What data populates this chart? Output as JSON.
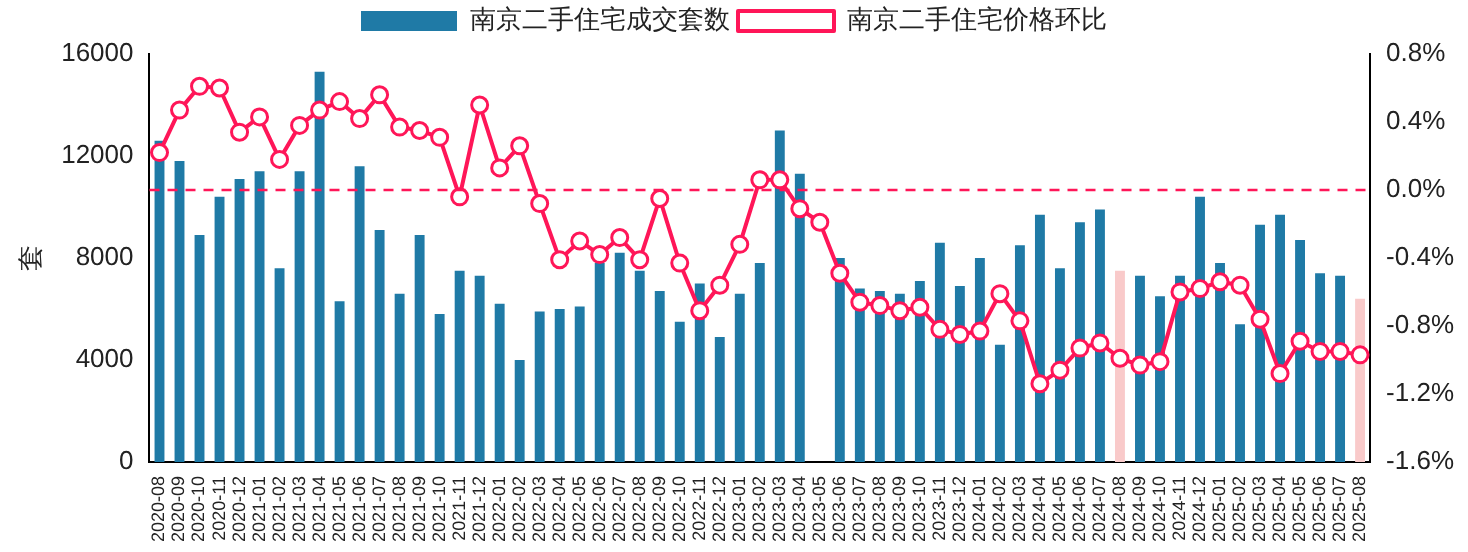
{
  "chart_data": {
    "type": "bar",
    "ylabel": "套",
    "categories": [
      "2020-08",
      "2020-09",
      "2020-10",
      "2020-11",
      "2020-12",
      "2021-01",
      "2021-02",
      "2021-03",
      "2021-04",
      "2021-05",
      "2021-06",
      "2021-07",
      "2021-08",
      "2021-09",
      "2021-10",
      "2021-11",
      "2021-12",
      "2022-01",
      "2022-02",
      "2022-03",
      "2022-04",
      "2022-05",
      "2022-06",
      "2022-07",
      "2022-08",
      "2022-09",
      "2022-10",
      "2022-11",
      "2022-12",
      "2023-01",
      "2023-02",
      "2023-03",
      "2023-04",
      "2023-05",
      "2023-06",
      "2023-07",
      "2023-08",
      "2023-09",
      "2023-10",
      "2023-11",
      "2023-12",
      "2024-01",
      "2024-02",
      "2024-03",
      "2024-04",
      "2024-05",
      "2024-06",
      "2024-07",
      "2024-08",
      "2024-09",
      "2024-10",
      "2024-11",
      "2024-12",
      "2025-01",
      "2025-02",
      "2025-03",
      "2025-04",
      "2025-05",
      "2025-06",
      "2025-07",
      "2025-08"
    ],
    "series": [
      {
        "name": "南京二手住宅成交套数",
        "colors": [
          "#1f7aa6",
          "#1f7aa6",
          "#1f7aa6",
          "#1f7aa6",
          "#1f7aa6",
          "#1f7aa6",
          "#1f7aa6",
          "#1f7aa6",
          "#1f7aa6",
          "#1f7aa6",
          "#1f7aa6",
          "#1f7aa6",
          "#1f7aa6",
          "#1f7aa6",
          "#1f7aa6",
          "#1f7aa6",
          "#1f7aa6",
          "#1f7aa6",
          "#1f7aa6",
          "#1f7aa6",
          "#1f7aa6",
          "#1f7aa6",
          "#1f7aa6",
          "#1f7aa6",
          "#1f7aa6",
          "#1f7aa6",
          "#1f7aa6",
          "#1f7aa6",
          "#1f7aa6",
          "#1f7aa6",
          "#1f7aa6",
          "#1f7aa6",
          "#1f7aa6",
          "#1f7aa6",
          "#1f7aa6",
          "#1f7aa6",
          "#1f7aa6",
          "#1f7aa6",
          "#1f7aa6",
          "#1f7aa6",
          "#1f7aa6",
          "#1f7aa6",
          "#1f7aa6",
          "#1f7aa6",
          "#1f7aa6",
          "#1f7aa6",
          "#1f7aa6",
          "#1f7aa6",
          "#f9caca",
          "#1f7aa6",
          "#1f7aa6",
          "#1f7aa6",
          "#1f7aa6",
          "#1f7aa6",
          "#1f7aa6",
          "#1f7aa6",
          "#1f7aa6",
          "#1f7aa6",
          "#1f7aa6",
          "#1f7aa6",
          "#f9caca"
        ],
        "values": [
          12600,
          11800,
          8900,
          10400,
          11100,
          11400,
          7600,
          11400,
          15300,
          6300,
          11600,
          9100,
          6600,
          8900,
          5800,
          7500,
          7300,
          6200,
          4000,
          5900,
          6000,
          6100,
          7800,
          8200,
          7500,
          6700,
          5500,
          7000,
          4900,
          6600,
          7800,
          13000,
          11300,
          null,
          8000,
          6800,
          6700,
          6600,
          7100,
          8600,
          6900,
          8000,
          4600,
          8500,
          9700,
          7600,
          9400,
          9900,
          7500,
          7300,
          6500,
          7300,
          10400,
          7800,
          5400,
          9300,
          9700,
          8700,
          7400,
          7300,
          6400
        ]
      },
      {
        "name": "南京二手住宅价格环比",
        "type": "line",
        "axis": "y2",
        "color": "#ff1658",
        "marker": "circle",
        "values": [
          0.22,
          0.47,
          0.61,
          0.6,
          0.34,
          0.43,
          0.18,
          0.38,
          0.47,
          0.52,
          0.42,
          0.56,
          0.37,
          0.35,
          0.31,
          -0.04,
          0.5,
          0.13,
          0.26,
          -0.08,
          -0.41,
          -0.3,
          -0.38,
          -0.28,
          -0.41,
          -0.05,
          -0.43,
          -0.71,
          -0.56,
          -0.32,
          0.06,
          0.06,
          -0.11,
          -0.19,
          -0.49,
          -0.66,
          -0.68,
          -0.71,
          -0.69,
          -0.82,
          -0.85,
          -0.83,
          -0.61,
          -0.77,
          -1.14,
          -1.06,
          -0.93,
          -0.9,
          -0.99,
          -1.03,
          -1.01,
          -0.6,
          -0.58,
          -0.54,
          -0.56,
          -0.76,
          -1.08,
          -0.89,
          -0.95,
          -0.95,
          -0.97
        ]
      }
    ],
    "ylim": [
      0,
      16000
    ],
    "yticks": [
      0,
      4000,
      8000,
      12000,
      16000
    ],
    "y2lim": [
      -1.6,
      0.8
    ],
    "y2ticks": [
      {
        "value": -1.6,
        "label": "-1.6%"
      },
      {
        "value": -1.2,
        "label": "-1.2%"
      },
      {
        "value": -0.8,
        "label": "-0.8%"
      },
      {
        "value": -0.4,
        "label": "-0.4%"
      },
      {
        "value": 0,
        "label": "0.0%"
      },
      {
        "value": 0.4,
        "label": "0.4%"
      },
      {
        "value": 0.8,
        "label": "0.8%"
      }
    ],
    "ref_lines": [
      {
        "axis": "y2",
        "value": 0,
        "color": "#ff1658",
        "line_style": "dashed"
      }
    ],
    "legend": "top",
    "grid": false
  }
}
